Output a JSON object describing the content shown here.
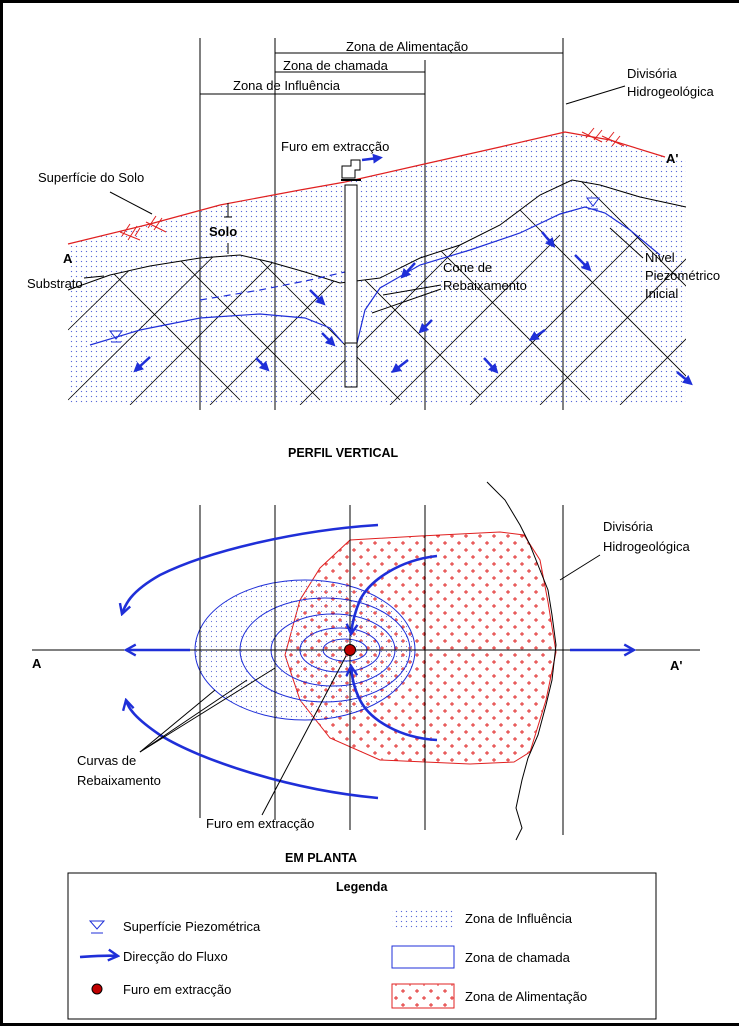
{
  "profile": {
    "zones": {
      "alimentacao": "Zona de Alimentação",
      "chamada": "Zona de chamada",
      "influencia": "Zona de Influência"
    },
    "labels": {
      "divisoria": [
        "Divisória",
        "Hidrogeológica"
      ],
      "furo": "Furo em extracção",
      "superficie_solo": "Superfície do Solo",
      "solo": "Solo",
      "a": "A",
      "a_prime": "A'",
      "substrato": "Substrato",
      "cone": [
        "Cone de",
        "Rebaixamento"
      ],
      "nivel": [
        "Nível",
        "Piezométrico",
        "Inicial"
      ]
    },
    "title": "PERFIL VERTICAL"
  },
  "plan": {
    "labels": {
      "divisoria": [
        "Divisória",
        "Hidrogeológica"
      ],
      "a": "A",
      "a_prime": "A'",
      "curvas": [
        "Curvas de",
        "Rebaixamento"
      ],
      "furo": "Furo em extracção"
    },
    "title": "EM PLANTA"
  },
  "legend": {
    "title": "Legenda",
    "items": [
      {
        "symbol": "triangle",
        "label": "Superfície Piezométrica"
      },
      {
        "symbol": "arrow",
        "label": "Direcção do Fluxo"
      },
      {
        "symbol": "dot",
        "label": "Furo em extracção"
      },
      {
        "symbol": "dots-fill",
        "label": "Zona de Influência"
      },
      {
        "symbol": "box",
        "label": "Zona de chamada"
      },
      {
        "symbol": "plus-fill",
        "label": "Zona de Alimentação"
      }
    ]
  },
  "colors": {
    "flow": "#1f2fd8",
    "surface": "#e02020",
    "alimentacao": "#e02020",
    "dots": "#5a6ad8",
    "well": "#c00000"
  }
}
